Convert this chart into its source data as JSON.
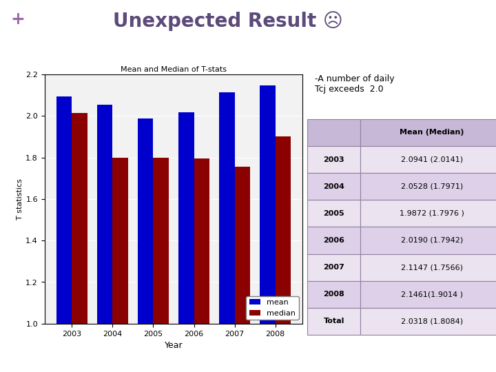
{
  "title": "Unexpected Result ☹",
  "plus_sign": "+",
  "chart_title": "Mean and Median of T-stats",
  "years": [
    2003,
    2004,
    2005,
    2006,
    2007,
    2008
  ],
  "mean_values": [
    2.0941,
    2.0528,
    1.9872,
    2.019,
    2.1147,
    2.1461
  ],
  "median_values": [
    2.0141,
    1.7971,
    1.7976,
    1.7942,
    1.7566,
    1.9014
  ],
  "mean_color": "#0000CC",
  "median_color": "#8B0000",
  "xlabel": "Year",
  "ylabel": "T statistics",
  "ylim": [
    1.0,
    2.2
  ],
  "yticks": [
    1.0,
    1.2,
    1.4,
    1.6,
    1.8,
    2.0,
    2.2
  ],
  "annotation_text": "-A number of daily\nTcj exceeds  2.0",
  "table_header": [
    "",
    "Mean (Median)"
  ],
  "table_rows": [
    [
      "2003",
      "2.0941 (2.0141)"
    ],
    [
      "2004",
      "2.0528 (1.7971)"
    ],
    [
      "2005",
      "1.9872 (1.7976 )"
    ],
    [
      "2006",
      "2.0190 (1.7942)"
    ],
    [
      "2007",
      "2.1147 (1.7566)"
    ],
    [
      "2008",
      "2.1461(1.9014 )"
    ],
    [
      "Total",
      "2.0318 (1.8084)"
    ]
  ],
  "table_header_bg": "#C8B8D8",
  "table_row_bg_light": "#EBE3F0",
  "table_row_bg_dark": "#DDD0E8",
  "table_border_color": "#9080A0",
  "slide_bg": "#FFFFFF",
  "purple_bar_dark": "#5C3D6E",
  "purple_bar_light": "#8B7BA0",
  "title_color": "#5C4A7A",
  "plus_color": "#9966AA"
}
